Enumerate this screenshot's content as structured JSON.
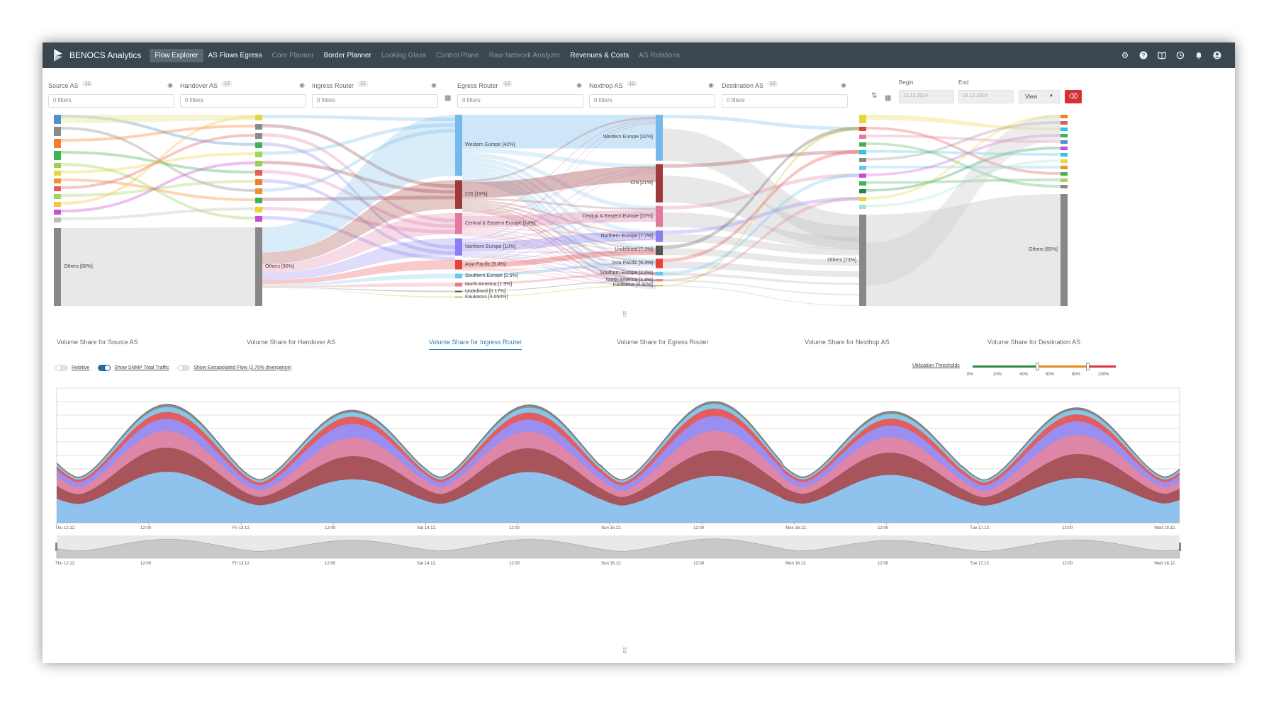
{
  "app": {
    "brand": "BENOCS Analytics",
    "nav": [
      {
        "label": "Flow Explorer",
        "state": "active"
      },
      {
        "label": "AS Flows Egress",
        "state": "bright"
      },
      {
        "label": "Core Planner",
        "state": "dim"
      },
      {
        "label": "Border Planner",
        "state": "bright"
      },
      {
        "label": "Looking Glass",
        "state": "dim"
      },
      {
        "label": "Control Plane",
        "state": "dim"
      },
      {
        "label": "Raw Network Analyzer",
        "state": "dim"
      },
      {
        "label": "Revenues & Costs",
        "state": "bright"
      },
      {
        "label": "AS Relations",
        "state": "dim"
      }
    ],
    "top_icons": [
      "gear-icon",
      "help-icon",
      "book-icon",
      "history-icon",
      "bell-icon",
      "user-icon"
    ]
  },
  "filters": [
    {
      "name": "source-as",
      "label": "Source AS",
      "count": "12",
      "value": "0 filters"
    },
    {
      "name": "handover-as",
      "label": "Handover AS",
      "count": "12",
      "value": "0 filters"
    },
    {
      "name": "ingress-router",
      "label": "Ingress Router",
      "count": "12",
      "value": "0 filters"
    },
    {
      "name": "egress-router",
      "label": "Egress Router",
      "count": "12",
      "value": "0 filters"
    },
    {
      "name": "nexthop-as",
      "label": "Nexthop AS",
      "count": "12",
      "value": "0 filters"
    },
    {
      "name": "destination-as",
      "label": "Destination AS",
      "count": "12",
      "value": "0 filters"
    }
  ],
  "dates": {
    "begin_label": "Begin",
    "begin_value": "12.12.2024",
    "end_label": "End",
    "end_value": "18.12.2024",
    "view_label": "View"
  },
  "sankey": {
    "ingress_nodes": [
      {
        "label": "Western Europe [42%]",
        "color": "#74b9ea",
        "share": 0.32
      },
      {
        "label": "CIS [19%]",
        "color": "#9f3a3a",
        "share": 0.15
      },
      {
        "label": "Central & Eastern Europe [14%]",
        "color": "#e07aa1",
        "share": 0.11
      },
      {
        "label": "Northern Europe [10%]",
        "color": "#8a7ef2",
        "share": 0.09
      },
      {
        "label": "Asia Pacific [5.4%]",
        "color": "#e8413c",
        "share": 0.05
      },
      {
        "label": "Southern Europe [2.6%]",
        "color": "#6cc5f0",
        "share": 0.025
      },
      {
        "label": "North America [1.9%]",
        "color": "#e67e8a",
        "share": 0.02
      },
      {
        "label": "Undefined [0.17%]",
        "color": "#555555",
        "share": 0.004
      },
      {
        "label": "Kaukasus [0.050%]",
        "color": "#c2c229",
        "share": 0.002
      }
    ],
    "egress_nodes": [
      {
        "label": "Western Europe [32%]",
        "color": "#74b9ea",
        "share": 0.24
      },
      {
        "label": "CIS [21%]",
        "color": "#9f3a3a",
        "share": 0.2
      },
      {
        "label": "Central & Eastern Europe [15%]",
        "color": "#e07aa1",
        "share": 0.11
      },
      {
        "label": "Northern Europe [7.7%]",
        "color": "#8a7ef2",
        "share": 0.06
      },
      {
        "label": "Undefined [7.1%]",
        "color": "#555555",
        "share": 0.05
      },
      {
        "label": "Asia Pacific [6.3%]",
        "color": "#e8413c",
        "share": 0.05
      },
      {
        "label": "Southern Europe [2.6%]",
        "color": "#6cc5f0",
        "share": 0.02
      },
      {
        "label": "North America [1.4%]",
        "color": "#e67e8a",
        "share": 0.012
      },
      {
        "label": "Kaukasus [0.50%]",
        "color": "#c2c229",
        "share": 0.006
      }
    ],
    "source_others": "Others [68%]",
    "handover_others": "Others [90%]",
    "nexthop_others": "Others [73%]",
    "destination_others": "Others [65%]"
  },
  "tabs": [
    {
      "label": "Volume Share for Source AS",
      "active": false
    },
    {
      "label": "Volume Share for Handover AS",
      "active": false
    },
    {
      "label": "Volume Share for Ingress Router",
      "active": true
    },
    {
      "label": "Volume Share for Egress Router",
      "active": false
    },
    {
      "label": "Volume Share for Nexthop AS",
      "active": false
    },
    {
      "label": "Volume Share for Destination AS",
      "active": false
    }
  ],
  "toggles": [
    {
      "label": "Relative",
      "on": false
    },
    {
      "label": "Show SNMP Total Traffic",
      "on": true
    },
    {
      "label": "Show Extrapolated Flow (2.76% divergence)",
      "on": false
    }
  ],
  "utilization": {
    "label": "Utilization Thresholds",
    "ticks": [
      "0%",
      "20%",
      "40%",
      "60%",
      "80%",
      "100%"
    ],
    "low_threshold": 0.45,
    "high_threshold": 0.8
  },
  "chart_data": {
    "type": "area",
    "x_ticks": [
      "Thu 12.12.",
      "12:00",
      "Fri 13.12.",
      "12:00",
      "Sat 14.12.",
      "12:00",
      "Sun 15.12.",
      "12:00",
      "Mon 16.12.",
      "12:00",
      "Tue 17.12.",
      "12:00",
      "Wed 18.12."
    ],
    "stack_colors": [
      "#8fc3ee",
      "#a7545a",
      "#de86a8",
      "#9a8ef0",
      "#e45d5d",
      "#86c6e8",
      "#8a8a8a"
    ],
    "stack_shares": [
      0.4,
      0.2,
      0.15,
      0.11,
      0.06,
      0.04,
      0.02
    ],
    "daily_peak": [
      1.0,
      0.98,
      1.0,
      1.05,
      0.95,
      0.99
    ],
    "daily_trough": 0.38
  }
}
